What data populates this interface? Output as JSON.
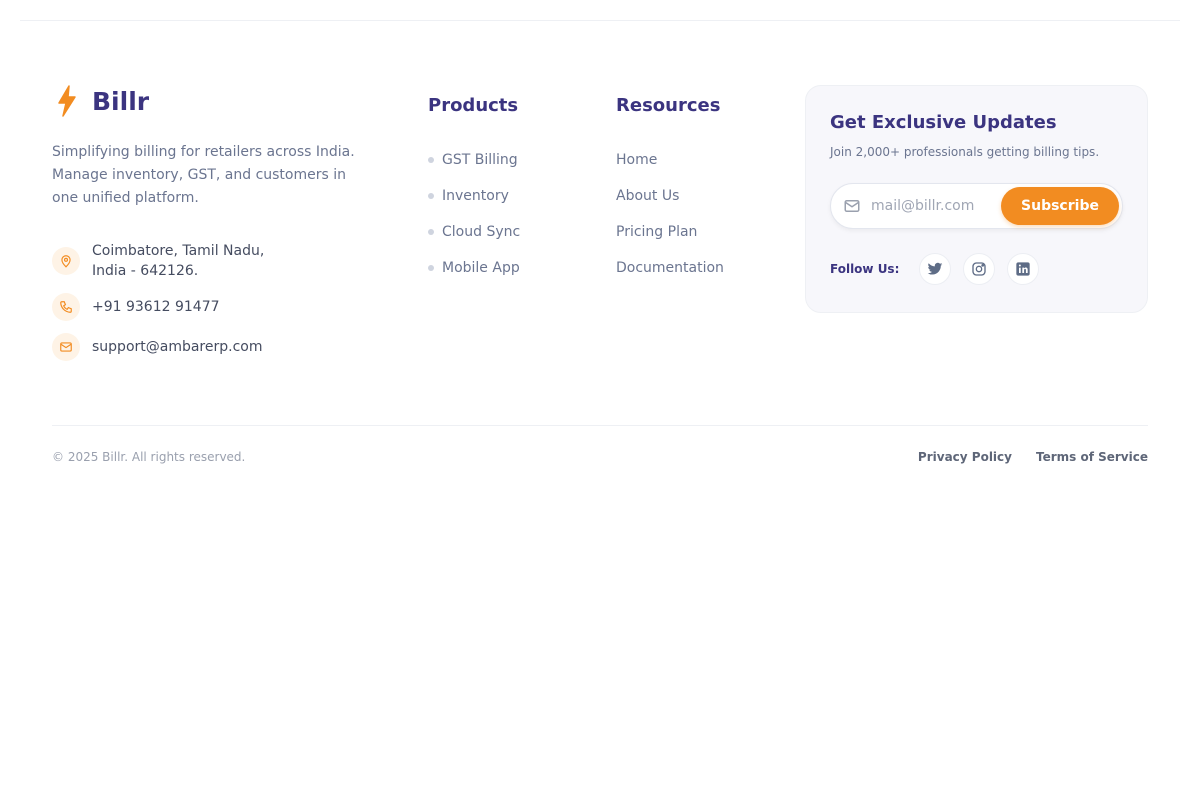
{
  "brand": {
    "name": "Billr",
    "description": "Simplifying billing for retailers across India. Manage inventory, GST, and customers in one unified platform."
  },
  "contact": {
    "address_line1": "Coimbatore, Tamil Nadu,",
    "address_line2": "India - 642126.",
    "phone": "+91 93612 91477",
    "email": "support@ambarerp.com"
  },
  "products": {
    "title": "Products",
    "items": [
      "GST Billing",
      "Inventory",
      "Cloud Sync",
      "Mobile App"
    ]
  },
  "resources": {
    "title": "Resources",
    "items": [
      "Home",
      "About Us",
      "Pricing Plan",
      "Documentation"
    ]
  },
  "newsletter": {
    "title": "Get Exclusive Updates",
    "subtitle": "Join 2,000+ professionals getting billing tips.",
    "placeholder": "mail@billr.com",
    "button": "Subscribe",
    "follow_label": "Follow Us:",
    "socials": [
      "twitter-icon",
      "instagram-icon",
      "linkedin-icon"
    ]
  },
  "footer": {
    "copyright": "© 2025 Billr. All rights reserved.",
    "privacy": "Privacy Policy",
    "terms": "Terms of Service"
  },
  "colors": {
    "brand": "#3b3480",
    "accent": "#f28c21"
  }
}
